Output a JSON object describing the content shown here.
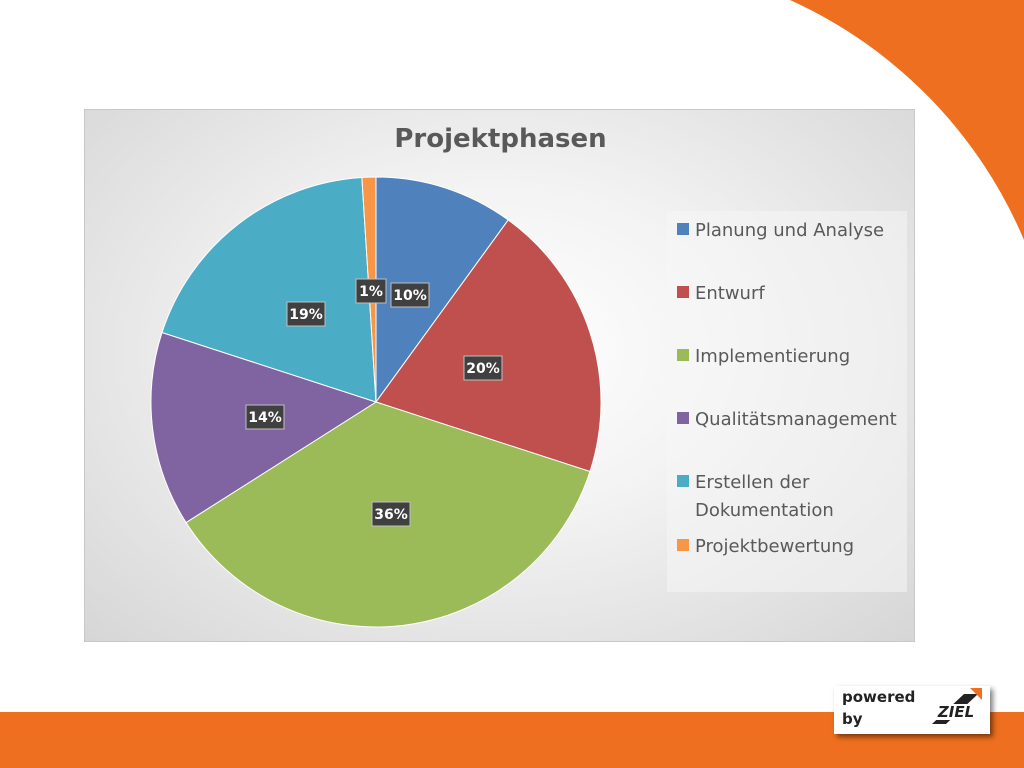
{
  "chart_data": {
    "type": "pie",
    "title": "Projektphasen",
    "categories": [
      "Planung und Analyse",
      "Entwurf",
      "Implementierung",
      "Qualitätsmanagement",
      "Erstellen der Dokumentation",
      "Projektbewertung"
    ],
    "values": [
      10,
      20,
      36,
      14,
      19,
      1
    ],
    "data_labels": [
      "10%",
      "20%",
      "36%",
      "14%",
      "19%",
      "1%"
    ],
    "colors": [
      "#4f81bd",
      "#c0504d",
      "#9bbb59",
      "#8064a2",
      "#4bacc6",
      "#f79646"
    ],
    "start_angle_deg": 0,
    "direction": "clockwise",
    "legend_position": "right"
  },
  "branding": {
    "powered_text": "powered",
    "by_text": "by",
    "logo_wordmark": "ZIEL",
    "accent_color": "#ee6f1f"
  }
}
